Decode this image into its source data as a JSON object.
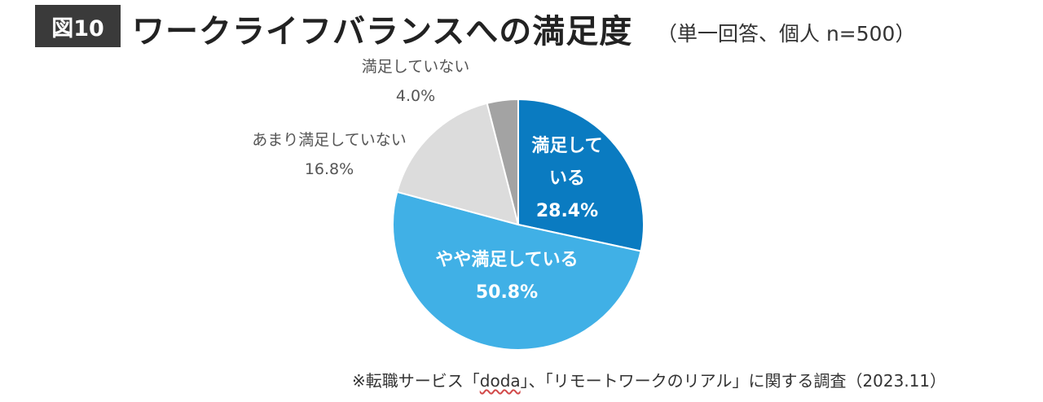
{
  "header": {
    "figure_label": "図10",
    "title": "ワークライフバランスへの満足度",
    "subtitle": "（単一回答、個人 n=500）"
  },
  "chart_data": {
    "type": "pie",
    "title": "ワークライフバランスへの満足度",
    "slices": [
      {
        "label": "満足している",
        "display_label_lines": [
          "満足して",
          "いる"
        ],
        "value_label": "28.4%",
        "value": 28.4,
        "color": "#0a7bc1",
        "label_position": "inside"
      },
      {
        "label": "やや満足している",
        "display_label_lines": [
          "やや満足している"
        ],
        "value_label": "50.8%",
        "value": 50.8,
        "color": "#40b0e6",
        "label_position": "inside"
      },
      {
        "label": "あまり満足していない",
        "display_label_lines": [
          "あまり満足していない"
        ],
        "value_label": "16.8%",
        "value": 16.8,
        "color": "#dcdcdc",
        "label_position": "outside"
      },
      {
        "label": "満足していない",
        "display_label_lines": [
          "満足していない"
        ],
        "value_label": "4.0%",
        "value": 4.0,
        "color": "#a3a3a3",
        "label_position": "outside"
      }
    ],
    "start": "12 o'clock, clockwise"
  },
  "footnote": {
    "prefix": "※転職サービス「",
    "brand": "doda",
    "suffix": "」、「リモートワークのリアル」に関する調査（2023.11）"
  }
}
